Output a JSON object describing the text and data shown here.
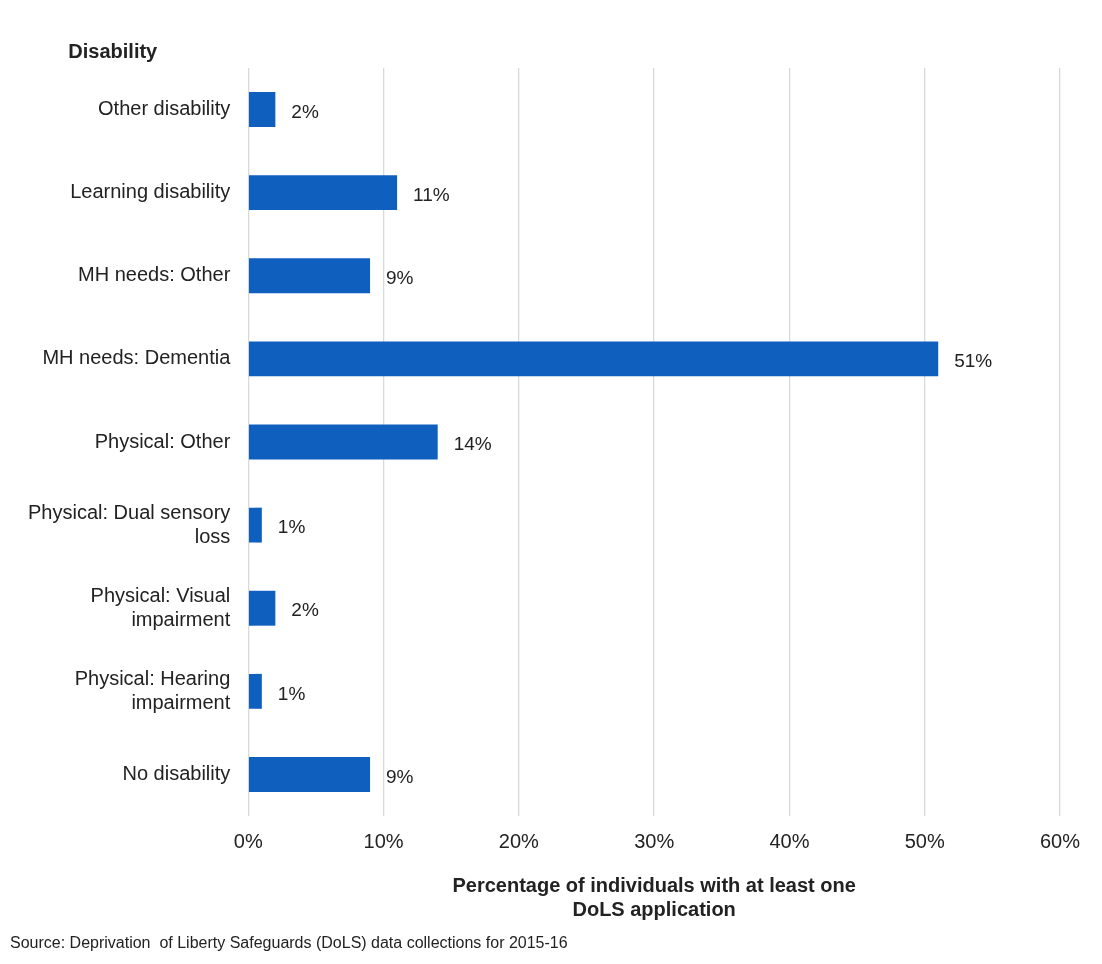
{
  "chart_data": {
    "type": "bar",
    "orientation": "horizontal",
    "ylabel": "Disability",
    "xlabel": "Percentage of individuals with at least one DoLS application",
    "categories": [
      "Other disability",
      "Learning disability",
      "MH needs: Other",
      "MH needs: Dementia",
      "Physical: Other",
      "Physical: Dual sensory loss",
      "Physical: Visual impairment",
      "Physical: Hearing impairment",
      "No disability"
    ],
    "values": [
      2,
      11,
      9,
      51,
      14,
      1,
      2,
      1,
      9
    ],
    "value_labels": [
      "2%",
      "11%",
      "9%",
      "51%",
      "14%",
      "1%",
      "2%",
      "1%",
      "9%"
    ],
    "color": "#0f5fbf",
    "xlim": [
      0,
      60
    ],
    "xticks": [
      {
        "value": 0,
        "label": "0%"
      },
      {
        "value": 10,
        "label": "10%"
      },
      {
        "value": 20,
        "label": "20%"
      },
      {
        "value": 30,
        "label": "30%"
      },
      {
        "value": 40,
        "label": "40%"
      },
      {
        "value": 50,
        "label": "50%"
      },
      {
        "value": 60,
        "label": "60%"
      }
    ],
    "grid": "x",
    "legend": false,
    "annotations": [
      "Source: Deprivation  of Liberty Safeguards (DoLS) data collections for 2015-16"
    ]
  }
}
